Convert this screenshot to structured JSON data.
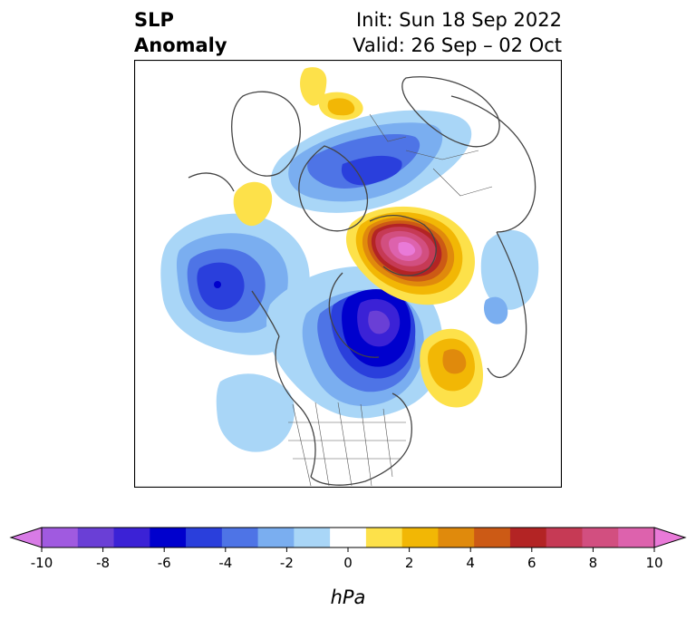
{
  "title": {
    "left_line1": "SLP",
    "left_line2": "Anomaly",
    "right_line1": "Init: Sun 18 Sep 2022",
    "right_line2": "Valid: 26 Sep – 02 Oct"
  },
  "colorbar": {
    "unit_label": "hPa",
    "ticks": [
      "-10",
      "-8",
      "-6",
      "-4",
      "-2",
      "0",
      "2",
      "4",
      "6",
      "8",
      "10"
    ],
    "colors": [
      "#d87be6",
      "#a05ae0",
      "#6a3fd6",
      "#3b22d6",
      "#0000cd",
      "#2a3fdc",
      "#4e74e6",
      "#7aaef0",
      "#a9d6f7",
      "#ffffff",
      "#fde14a",
      "#f2b705",
      "#e08a0c",
      "#cc5a15",
      "#b32424",
      "#c63a55",
      "#d24f80",
      "#dd62ad",
      "#e97ad8"
    ]
  },
  "map": {
    "projection": "north-polar-stereographic",
    "features": [
      {
        "name": "aleutian-low",
        "sign": "negative",
        "peak_hpa": -6
      },
      {
        "name": "arctic-low-siberia",
        "sign": "negative",
        "peak_hpa": -6
      },
      {
        "name": "hudson-bay-low",
        "sign": "negative",
        "peak_hpa": -8
      },
      {
        "name": "scandinavia-high",
        "sign": "positive",
        "peak_hpa": 9
      },
      {
        "name": "north-atlantic-high",
        "sign": "positive",
        "peak_hpa": 4
      },
      {
        "name": "east-asia-high",
        "sign": "positive",
        "peak_hpa": 2
      },
      {
        "name": "mideast-high",
        "sign": "positive",
        "peak_hpa": 2
      }
    ]
  }
}
